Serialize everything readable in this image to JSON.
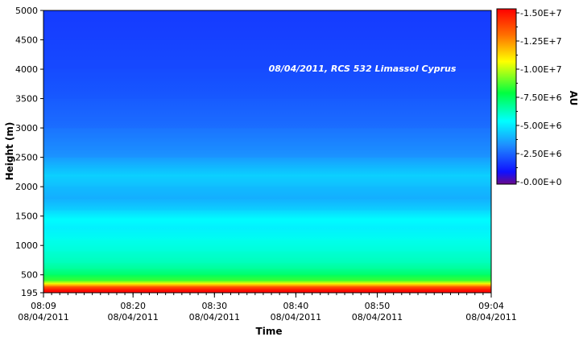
{
  "chart_data": {
    "type": "heatmap",
    "title": "",
    "annotation": "08/04/2011, RCS 532 Limassol Cyprus",
    "xlabel": "Time",
    "ylabel": "Height (m)",
    "colorbar_label": "AU",
    "x_range": [
      "08:09",
      "09:04"
    ],
    "x_date": "08/04/2011",
    "x_ticks": [
      {
        "time": "08:09",
        "date": "08/04/2011"
      },
      {
        "time": "08:20",
        "date": "08/04/2011"
      },
      {
        "time": "08:30",
        "date": "08/04/2011"
      },
      {
        "time": "08:40",
        "date": "08/04/2011"
      },
      {
        "time": "08:50",
        "date": "08/04/2011"
      },
      {
        "time": "09:04",
        "date": "08/04/2011"
      }
    ],
    "ylim": [
      195,
      5000
    ],
    "y_ticks": [
      195,
      500,
      1000,
      1500,
      2000,
      2500,
      3000,
      3500,
      4000,
      4500,
      5000
    ],
    "y_tick_labels": [
      "195",
      "500",
      "1000",
      "1500",
      "2000",
      "2500",
      "3000",
      "3500",
      "4000",
      "4500",
      "5000"
    ],
    "colorbar_range": [
      0,
      15000000
    ],
    "colorbar_ticks": [
      0,
      2500000,
      5000000,
      7500000,
      10000000,
      12500000,
      15000000
    ],
    "colorbar_tick_labels": [
      "-0.00E+0",
      "-2.50E+6",
      "-5.00E+6",
      "-7.50E+6",
      "-1.00E+7",
      "-1.25E+7",
      "-1.50E+7"
    ],
    "colormap": [
      "#6a0a8a",
      "#1010ff",
      "#1e8cff",
      "#00ffff",
      "#00ff40",
      "#ffff00",
      "#ff7000",
      "#ff0000"
    ],
    "profile": {
      "height_m": [
        195,
        250,
        300,
        350,
        400,
        500,
        600,
        700,
        900,
        1100,
        1300,
        1450,
        1600,
        1800,
        2000,
        2200,
        2500,
        3000,
        3500,
        4000,
        4500,
        5000
      ],
      "value": [
        15000000,
        14500000,
        13000000,
        10500000,
        8500000,
        7300000,
        6700000,
        6300000,
        5900000,
        5600000,
        5100000,
        5400000,
        4600000,
        3900000,
        4200000,
        4600000,
        3500000,
        2800000,
        2400000,
        2100000,
        1950000,
        1850000
      ]
    }
  }
}
